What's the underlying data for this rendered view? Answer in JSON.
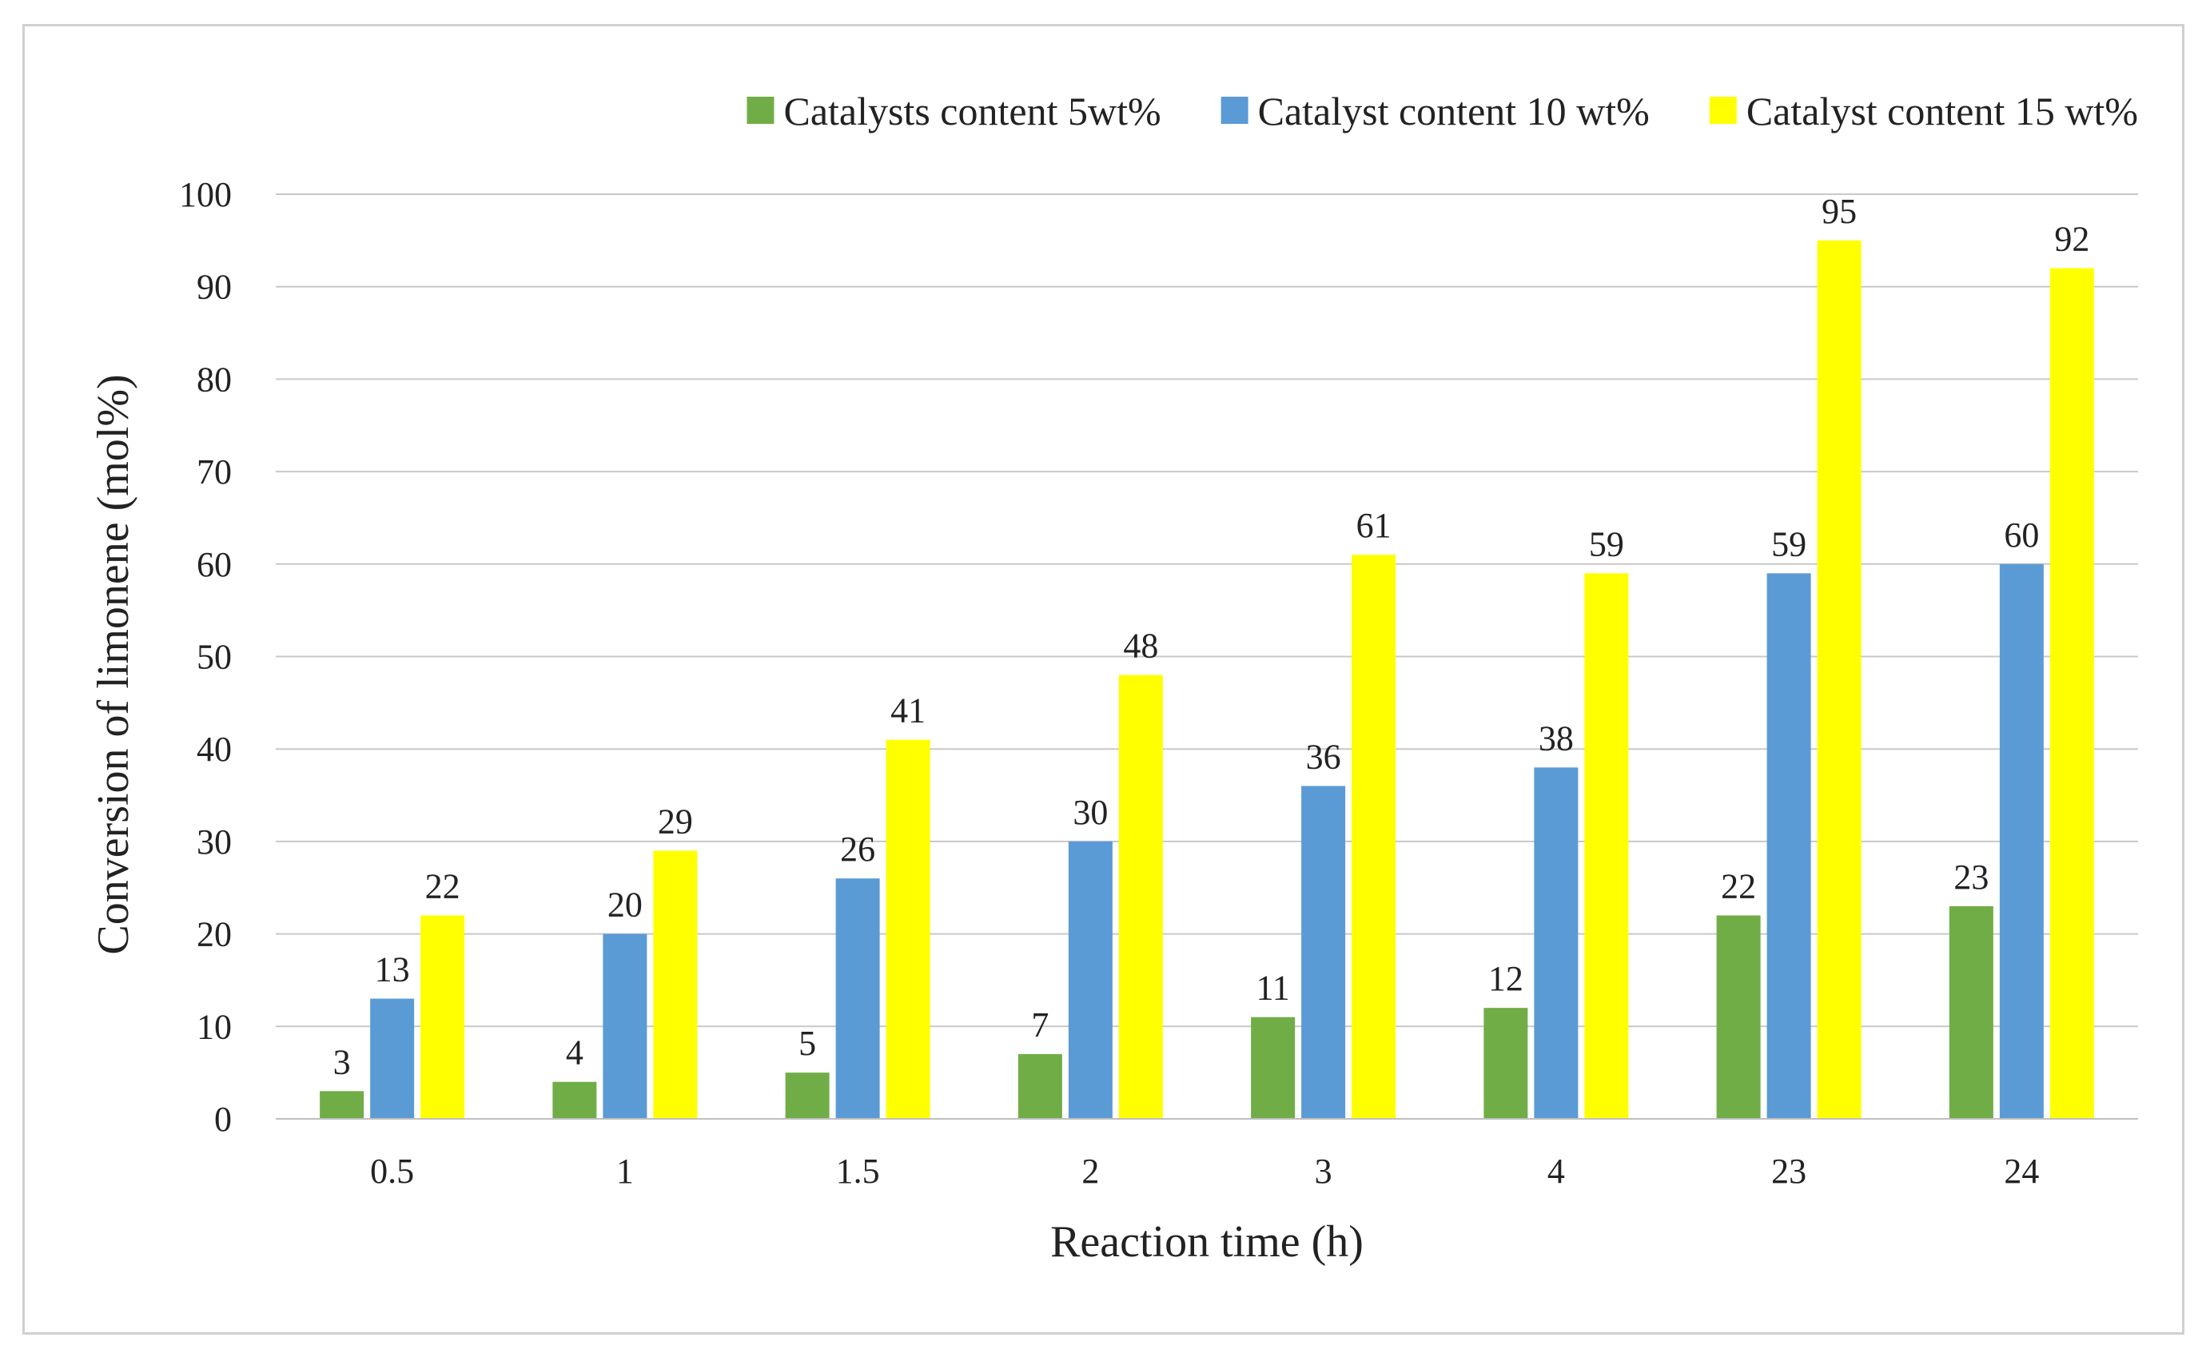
{
  "chart_data": {
    "type": "bar",
    "title": "",
    "xlabel": "Reaction time (h)",
    "ylabel": "Conversion of limonene (mol%)",
    "ylim": [
      0,
      100
    ],
    "yticks": [
      0,
      10,
      20,
      30,
      40,
      50,
      60,
      70,
      80,
      90,
      100
    ],
    "grid": true,
    "legend_position": "top-right",
    "categories": [
      "0.5",
      "1",
      "1.5",
      "2",
      "3",
      "4",
      "23",
      "24"
    ],
    "series": [
      {
        "name": "Catalysts content 5wt%",
        "color": "#70ad47",
        "values": [
          3,
          4,
          5,
          7,
          11,
          12,
          22,
          23
        ],
        "value_labels": [
          "3",
          "4",
          "5",
          "7",
          "11",
          "12",
          "22",
          "23"
        ]
      },
      {
        "name": "Catalyst content 10 wt%",
        "color": "#5b9bd5",
        "values": [
          13,
          20,
          26,
          30,
          36,
          38,
          59,
          60
        ],
        "value_labels": [
          "13",
          "20",
          "26",
          "30",
          "36",
          "38",
          "59",
          "60"
        ]
      },
      {
        "name": "Catalyst content 15 wt%",
        "color": "#ffff00",
        "values": [
          22,
          29,
          41,
          48,
          61,
          59,
          95,
          92
        ],
        "value_labels": [
          "22",
          "29",
          "41",
          "48",
          "61",
          "59",
          "95",
          "92"
        ]
      }
    ]
  }
}
